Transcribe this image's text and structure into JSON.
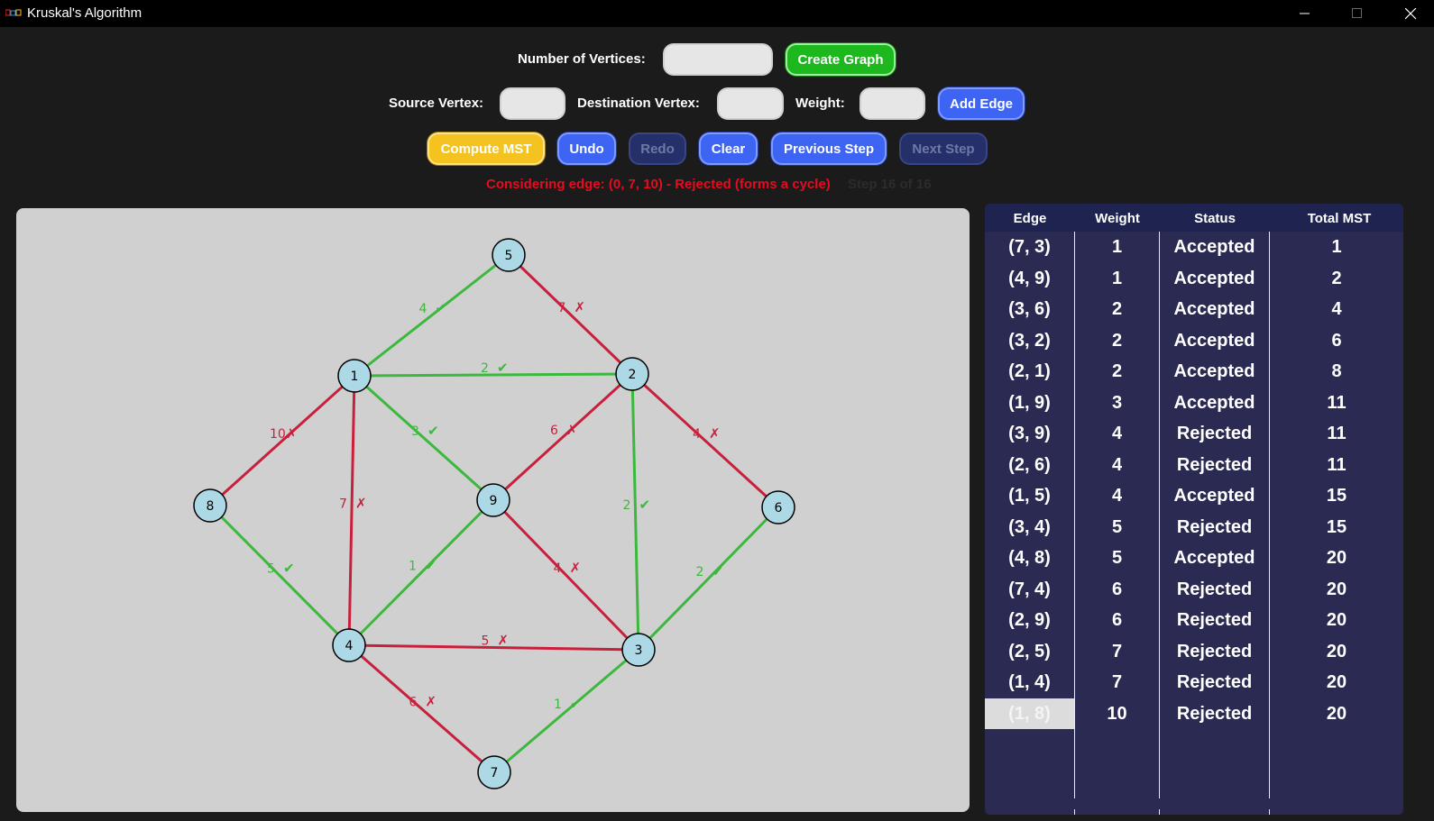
{
  "window": {
    "title": "Kruskal's Algorithm",
    "icon": "java-coffee-icon"
  },
  "controls": {
    "vertices_label": "Number of Vertices:",
    "vertices_value": "",
    "create_graph_label": "Create Graph",
    "source_label": "Source Vertex:",
    "source_value": "",
    "destination_label": "Destination Vertex:",
    "destination_value": "",
    "weight_label": "Weight:",
    "weight_value": "",
    "add_edge_label": "Add Edge",
    "compute_label": "Compute MST",
    "undo_label": "Undo",
    "redo_label": "Redo",
    "clear_label": "Clear",
    "previous_label": "Previous Step",
    "next_label": "Next Step"
  },
  "status": {
    "message": "Considering edge: (0, 7, 10) - Rejected (forms a cycle)",
    "step": "Step 16 of 16"
  },
  "colors": {
    "accepted": "#3cb83c",
    "rejected": "#c8203c",
    "node_fill": "#add8e6",
    "status_text": "#e60c1f"
  },
  "graph": {
    "nodes": [
      "1",
      "2",
      "3",
      "4",
      "5",
      "6",
      "7",
      "8",
      "9"
    ],
    "edges": [
      {
        "u": "1",
        "v": "5",
        "w": "4",
        "status": "accepted"
      },
      {
        "u": "5",
        "v": "2",
        "w": "7",
        "status": "rejected"
      },
      {
        "u": "1",
        "v": "2",
        "w": "2",
        "status": "accepted"
      },
      {
        "u": "1",
        "v": "8",
        "w": "10",
        "status": "rejected"
      },
      {
        "u": "1",
        "v": "4",
        "w": "7",
        "status": "rejected"
      },
      {
        "u": "1",
        "v": "9",
        "w": "3",
        "status": "accepted"
      },
      {
        "u": "2",
        "v": "9",
        "w": "6",
        "status": "rejected"
      },
      {
        "u": "2",
        "v": "3",
        "w": "2",
        "status": "accepted"
      },
      {
        "u": "2",
        "v": "6",
        "w": "4",
        "status": "rejected"
      },
      {
        "u": "8",
        "v": "4",
        "w": "5",
        "status": "accepted"
      },
      {
        "u": "9",
        "v": "4",
        "w": "1",
        "status": "accepted"
      },
      {
        "u": "9",
        "v": "3",
        "w": "4",
        "status": "rejected"
      },
      {
        "u": "6",
        "v": "3",
        "w": "2",
        "status": "accepted"
      },
      {
        "u": "4",
        "v": "3",
        "w": "5",
        "status": "rejected"
      },
      {
        "u": "4",
        "v": "7",
        "w": "6",
        "status": "rejected"
      },
      {
        "u": "3",
        "v": "7",
        "w": "1",
        "status": "accepted"
      }
    ],
    "accepted_mark": "✔",
    "rejected_mark": "✗"
  },
  "table": {
    "headers": [
      "Edge",
      "Weight",
      "Status",
      "Total MST"
    ],
    "rows": [
      [
        "(7, 3)",
        "1",
        "Accepted",
        "1"
      ],
      [
        "(4, 9)",
        "1",
        "Accepted",
        "2"
      ],
      [
        "(3, 6)",
        "2",
        "Accepted",
        "4"
      ],
      [
        "(3, 2)",
        "2",
        "Accepted",
        "6"
      ],
      [
        "(2, 1)",
        "2",
        "Accepted",
        "8"
      ],
      [
        "(1, 9)",
        "3",
        "Accepted",
        "11"
      ],
      [
        "(3, 9)",
        "4",
        "Rejected",
        "11"
      ],
      [
        "(2, 6)",
        "4",
        "Rejected",
        "11"
      ],
      [
        "(1, 5)",
        "4",
        "Accepted",
        "15"
      ],
      [
        "(3, 4)",
        "5",
        "Rejected",
        "15"
      ],
      [
        "(4, 8)",
        "5",
        "Accepted",
        "20"
      ],
      [
        "(7, 4)",
        "6",
        "Rejected",
        "20"
      ],
      [
        "(2, 9)",
        "6",
        "Rejected",
        "20"
      ],
      [
        "(2, 5)",
        "7",
        "Rejected",
        "20"
      ],
      [
        "(1, 4)",
        "7",
        "Rejected",
        "20"
      ],
      [
        "(1, 8)",
        "10",
        "Rejected",
        "20"
      ]
    ],
    "selected_row": 15
  }
}
